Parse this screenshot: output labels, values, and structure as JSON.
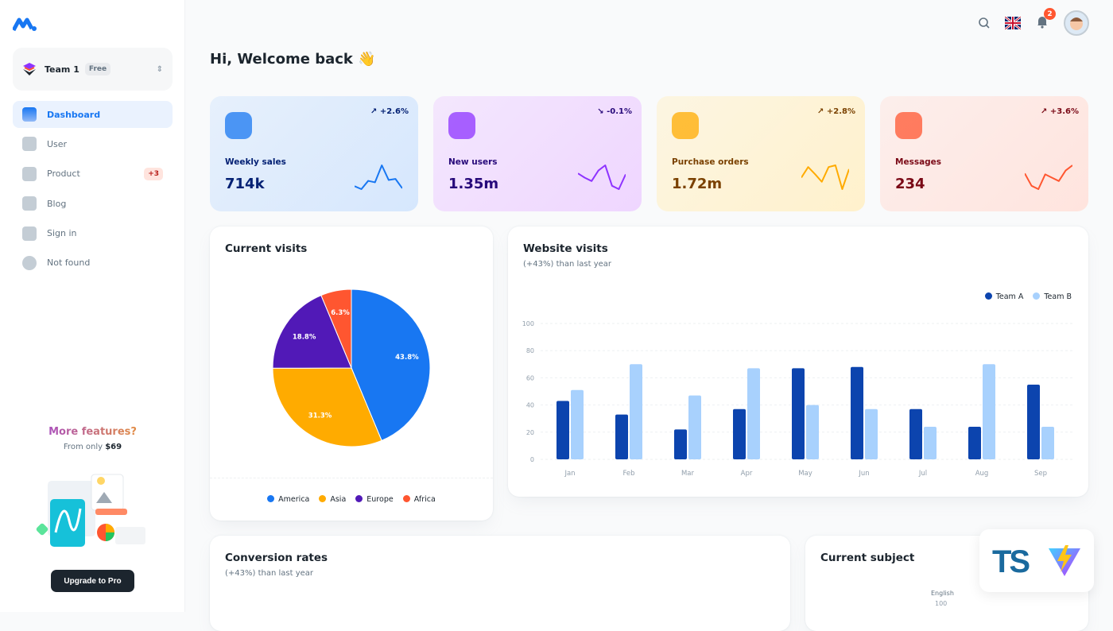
{
  "sidebar": {
    "team": {
      "name": "Team 1",
      "plan": "Free"
    },
    "items": [
      {
        "label": "Dashboard",
        "icon": "dashboard-icon",
        "active": true
      },
      {
        "label": "User",
        "icon": "user-icon"
      },
      {
        "label": "Product",
        "icon": "cart-icon",
        "badge": "+3"
      },
      {
        "label": "Blog",
        "icon": "blog-icon"
      },
      {
        "label": "Sign in",
        "icon": "lock-icon"
      },
      {
        "label": "Not found",
        "icon": "disabled-icon"
      }
    ],
    "promo": {
      "title": "More features?",
      "from": "From only",
      "price": "$69",
      "button": "Upgrade to Pro"
    }
  },
  "topbar": {
    "notifications": "2"
  },
  "greeting": "Hi, Welcome back 👋",
  "stats": [
    {
      "label": "Weekly sales",
      "value": "714k",
      "trend": "+2.6%",
      "dir": "up",
      "bg": "#D6E7FD",
      "fg": "#042174",
      "line": "#1877F2",
      "spark": [
        22,
        8,
        47,
        40,
        120,
        51,
        56,
        12
      ]
    },
    {
      "label": "New users",
      "value": "1.35m",
      "trend": "-0.1%",
      "dir": "down",
      "bg": "#EFD6FF",
      "fg": "#27097A",
      "line": "#8E33FF",
      "spark": [
        56,
        47,
        40,
        62,
        73,
        30,
        23,
        54
      ]
    },
    {
      "label": "Purchase orders",
      "value": "1.72m",
      "trend": "+2.8%",
      "dir": "up",
      "bg": "#FFF1CC",
      "fg": "#7A4100",
      "line": "#FFAB00",
      "spark": [
        40,
        70,
        50,
        28,
        70,
        75,
        7,
        64
      ]
    },
    {
      "label": "Messages",
      "value": "234",
      "trend": "+3.6%",
      "dir": "up",
      "bg": "#FFE4DE",
      "fg": "#7A0916",
      "line": "#FF5630",
      "spark": [
        56,
        30,
        23,
        54,
        47,
        40,
        62,
        73
      ]
    }
  ],
  "current_visits": {
    "title": "Current visits"
  },
  "website_visits": {
    "title": "Website visits",
    "subtitle": "(+43%) than last year"
  },
  "conversion": {
    "title": "Conversion rates",
    "subtitle": "(+43%) than last year"
  },
  "subject": {
    "title": "Current subject",
    "axis_label": "English",
    "axis_value": "100"
  },
  "chart_data": [
    {
      "type": "pie",
      "categories": [
        "America",
        "Asia",
        "Europe",
        "Africa"
      ],
      "values": [
        43.8,
        31.3,
        18.8,
        6.3
      ],
      "labels": [
        "43.8%",
        "31.3%",
        "18.8%",
        "6.3%"
      ],
      "colors": [
        "#1877F2",
        "#FFAB00",
        "#5119B7",
        "#FF5630"
      ],
      "legend": "bottom"
    },
    {
      "type": "bar",
      "categories": [
        "Jan",
        "Feb",
        "Mar",
        "Apr",
        "May",
        "Jun",
        "Jul",
        "Aug",
        "Sep"
      ],
      "series": [
        {
          "name": "Team A",
          "values": [
            43,
            33,
            22,
            37,
            67,
            68,
            37,
            24,
            55
          ],
          "color": "#0C44AE"
        },
        {
          "name": "Team B",
          "values": [
            51,
            70,
            47,
            67,
            40,
            37,
            24,
            70,
            24
          ],
          "color": "#A8D1FD"
        }
      ],
      "ylim": [
        0,
        100
      ],
      "yticks": [
        0,
        20,
        40,
        60,
        80,
        100
      ],
      "legend": "top-right",
      "grid": true
    }
  ]
}
